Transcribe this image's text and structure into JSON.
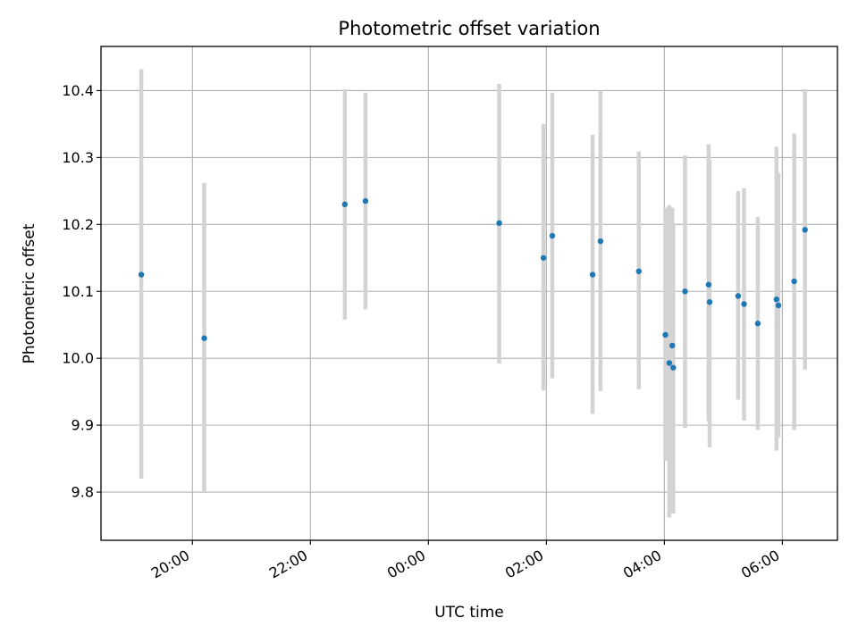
{
  "chart_data": {
    "type": "scatter",
    "title": "Photometric offset variation",
    "xlabel": "UTC time",
    "ylabel": "Photometric offset",
    "x_axis_kind": "time",
    "xlim": [
      "18:27",
      "06:56"
    ],
    "xticks": [
      {
        "value": "20:00",
        "label": "20:00"
      },
      {
        "value": "22:00",
        "label": "22:00"
      },
      {
        "value": "00:00",
        "label": "00:00"
      },
      {
        "value": "02:00",
        "label": "02:00"
      },
      {
        "value": "04:00",
        "label": "04:00"
      },
      {
        "value": "06:00",
        "label": "06:00"
      }
    ],
    "ylim": [
      9.728,
      10.466
    ],
    "yticks": [
      9.8,
      9.9,
      10.0,
      10.1,
      10.2,
      10.3,
      10.4
    ],
    "ytick_labels": [
      "9.8",
      "9.9",
      "10.0",
      "10.1",
      "10.2",
      "10.3",
      "10.4"
    ],
    "grid": true,
    "marker_color": "#1f77b4",
    "errorbar_color": "#d3d3d3",
    "points": [
      {
        "x": "19:08",
        "y": 10.125,
        "yerr_low": 9.82,
        "yerr_high": 10.432
      },
      {
        "x": "20:12",
        "y": 10.03,
        "yerr_low": 9.8,
        "yerr_high": 10.262
      },
      {
        "x": "22:35",
        "y": 10.23,
        "yerr_low": 10.058,
        "yerr_high": 10.402
      },
      {
        "x": "22:56",
        "y": 10.235,
        "yerr_low": 10.073,
        "yerr_high": 10.397
      },
      {
        "x": "01:12",
        "y": 10.202,
        "yerr_low": 9.992,
        "yerr_high": 10.41
      },
      {
        "x": "01:57",
        "y": 10.15,
        "yerr_low": 9.952,
        "yerr_high": 10.35
      },
      {
        "x": "02:06",
        "y": 10.183,
        "yerr_low": 9.97,
        "yerr_high": 10.397
      },
      {
        "x": "02:47",
        "y": 10.125,
        "yerr_low": 9.917,
        "yerr_high": 10.334
      },
      {
        "x": "02:55",
        "y": 10.175,
        "yerr_low": 9.951,
        "yerr_high": 10.4
      },
      {
        "x": "03:34",
        "y": 10.13,
        "yerr_low": 9.954,
        "yerr_high": 10.309
      },
      {
        "x": "04:01",
        "y": 10.035,
        "yerr_low": 9.847,
        "yerr_high": 10.225
      },
      {
        "x": "04:05",
        "y": 9.993,
        "yerr_low": 9.762,
        "yerr_high": 10.229
      },
      {
        "x": "04:08",
        "y": 10.019,
        "yerr_low": 9.774,
        "yerr_high": 10.225
      },
      {
        "x": "04:09",
        "y": 9.986,
        "yerr_low": 9.768,
        "yerr_high": 10.202
      },
      {
        "x": "04:21",
        "y": 10.1,
        "yerr_low": 9.896,
        "yerr_high": 10.303
      },
      {
        "x": "04:45",
        "y": 10.11,
        "yerr_low": 9.906,
        "yerr_high": 10.32
      },
      {
        "x": "04:46",
        "y": 10.084,
        "yerr_low": 9.867,
        "yerr_high": 10.296
      },
      {
        "x": "05:15",
        "y": 10.093,
        "yerr_low": 9.938,
        "yerr_high": 10.25
      },
      {
        "x": "05:21",
        "y": 10.081,
        "yerr_low": 9.907,
        "yerr_high": 10.254
      },
      {
        "x": "05:35",
        "y": 10.052,
        "yerr_low": 9.893,
        "yerr_high": 10.211
      },
      {
        "x": "05:54",
        "y": 10.088,
        "yerr_low": 9.862,
        "yerr_high": 10.316
      },
      {
        "x": "05:56",
        "y": 10.079,
        "yerr_low": 9.882,
        "yerr_high": 10.277
      },
      {
        "x": "06:12",
        "y": 10.115,
        "yerr_low": 9.893,
        "yerr_high": 10.336
      },
      {
        "x": "06:23",
        "y": 10.192,
        "yerr_low": 9.983,
        "yerr_high": 10.402
      }
    ]
  }
}
